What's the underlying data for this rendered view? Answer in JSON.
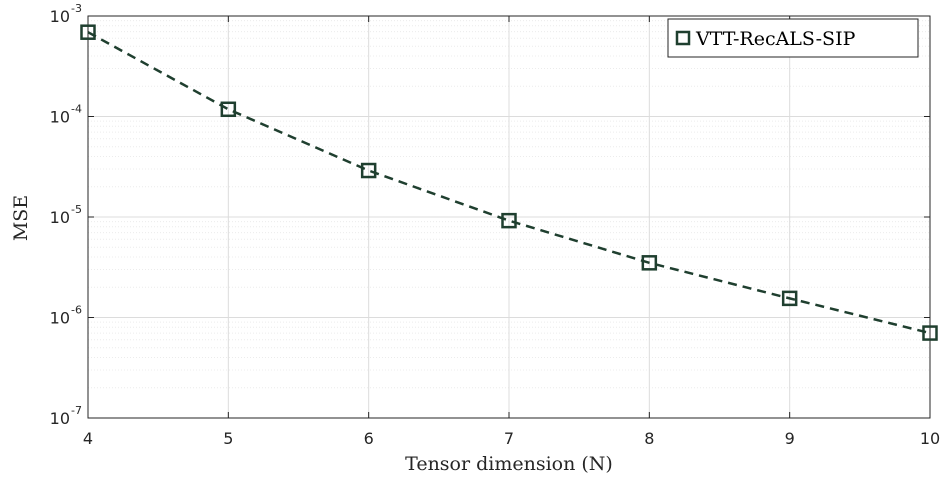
{
  "chart_data": {
    "type": "line",
    "xlabel": "Tensor dimension (N)",
    "ylabel": "MSE",
    "xlim": [
      4,
      10
    ],
    "ylim": [
      1e-07,
      0.001
    ],
    "yscale": "log",
    "grid": true,
    "legend_position": "top-right",
    "x_ticks": [
      "4",
      "5",
      "6",
      "7",
      "8",
      "9",
      "10"
    ],
    "y_ticks": [
      {
        "base": "10",
        "exponent": "-7"
      },
      {
        "base": "10",
        "exponent": "-6"
      },
      {
        "base": "10",
        "exponent": "-5"
      },
      {
        "base": "10",
        "exponent": "-4"
      },
      {
        "base": "10",
        "exponent": "-3"
      }
    ],
    "series": [
      {
        "name": "VTT-RecALS-SIP",
        "color": "#1f3f2f",
        "marker": "square",
        "line_style": "dashed",
        "x": [
          4,
          5,
          6,
          7,
          8,
          9,
          10
        ],
        "y": [
          0.00069,
          0.000118,
          2.9e-05,
          9.2e-06,
          3.5e-06,
          1.55e-06,
          7e-07
        ]
      }
    ]
  }
}
